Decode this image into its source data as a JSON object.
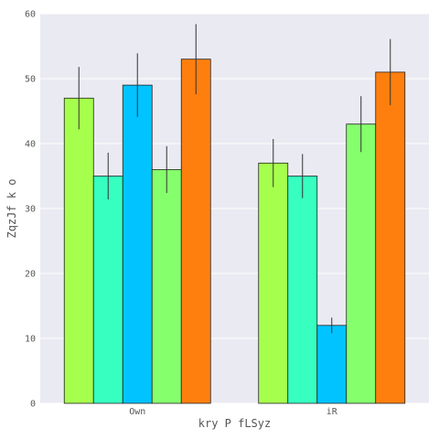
{
  "chart_data": {
    "type": "bar",
    "xlabel": "kry P  fLSyz",
    "ylabel": "ZqzJf  k  o",
    "categories": [
      "Own",
      "iR"
    ],
    "ylim": [
      0,
      60
    ],
    "yticks": [
      0,
      10,
      20,
      30,
      40,
      50,
      60
    ],
    "grid": true,
    "background": "#EAEAF2",
    "series": [
      {
        "color": "#A6FF4D",
        "values": [
          47,
          37
        ],
        "errors": [
          4.8,
          3.7
        ]
      },
      {
        "color": "#36FFC0",
        "values": [
          35,
          35
        ],
        "errors": [
          3.6,
          3.4
        ]
      },
      {
        "color": "#00C3FF",
        "values": [
          49,
          12
        ],
        "errors": [
          4.9,
          1.2
        ]
      },
      {
        "color": "#86FF6D",
        "values": [
          36,
          43
        ],
        "errors": [
          3.6,
          4.3
        ]
      },
      {
        "color": "#FF7F0E",
        "values": [
          53,
          51
        ],
        "errors": [
          5.4,
          5.1
        ]
      }
    ]
  }
}
